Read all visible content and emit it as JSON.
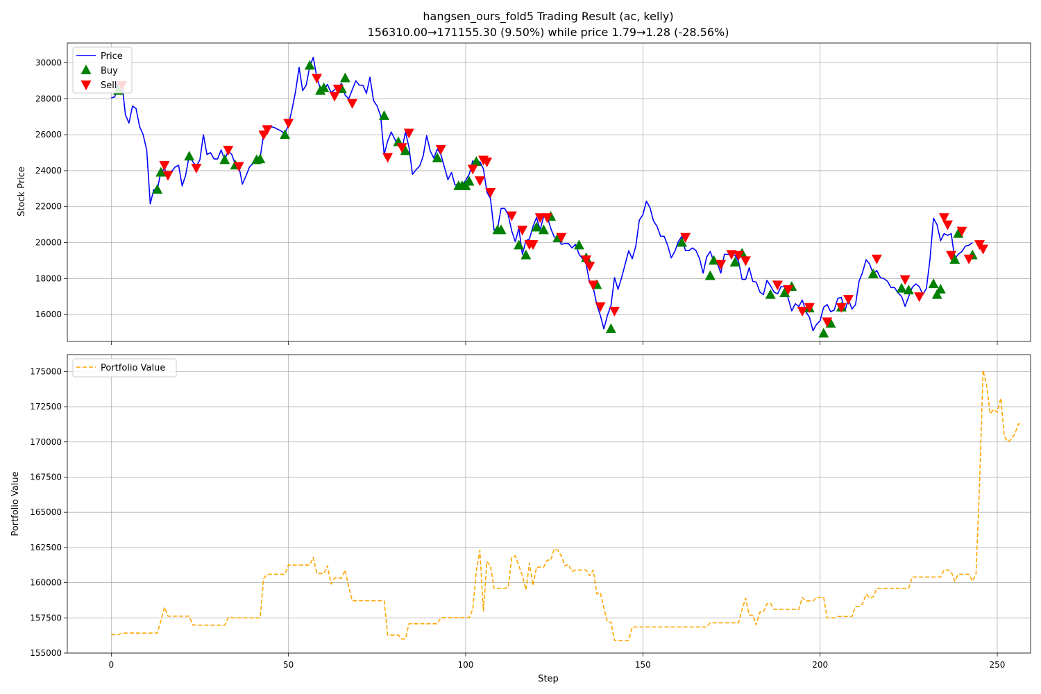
{
  "chart_data": [
    {
      "type": "line",
      "title": "hangsen_ours_fold5 Trading Result (ac, kelly)",
      "subtitle": "156310.00→171155.30 (9.50%) while price 1.79→1.28 (-28.56%)",
      "xlabel": "",
      "ylabel": "Stock Price",
      "xlim": [
        -12.4,
        259.4
      ],
      "ylim": [
        14500,
        31100
      ],
      "xticks": [
        0,
        50,
        100,
        150,
        200,
        250
      ],
      "yticks": [
        16000,
        18000,
        20000,
        22000,
        24000,
        26000,
        28000,
        30000
      ],
      "grid": true,
      "legend_position": "top-left",
      "legend": [
        "Price",
        "Buy",
        "Sell"
      ],
      "colors": {
        "price": "#0000ff",
        "buy": "#008000",
        "sell": "#ff0000"
      },
      "series": [
        {
          "name": "Price",
          "style": "solid",
          "x_start": 0,
          "values": [
            28050,
            28100,
            28900,
            28900,
            27100,
            26650,
            27600,
            27450,
            26450,
            26000,
            25150,
            22150,
            22950,
            22950,
            23950,
            24100,
            23750,
            23950,
            24200,
            24300,
            23150,
            23750,
            24850,
            24500,
            24250,
            24600,
            26000,
            24900,
            25000,
            24650,
            24650,
            25150,
            24600,
            25100,
            24900,
            24350,
            24250,
            23250,
            23700,
            24200,
            24400,
            24650,
            24700,
            26050,
            26350,
            26450,
            26400,
            26300,
            26200,
            26050,
            26550,
            27400,
            28400,
            29750,
            28450,
            28750,
            29800,
            30300,
            29200,
            28550,
            28500,
            28800,
            28350,
            28500,
            28650,
            28850,
            28200,
            28000,
            28500,
            29000,
            28750,
            28750,
            28300,
            29200,
            27900,
            27600,
            27050,
            24900,
            25650,
            26150,
            25750,
            25400,
            25150,
            26150,
            25300,
            23800,
            24050,
            24250,
            24800,
            25950,
            25100,
            24700,
            25200,
            24900,
            24200,
            23500,
            23900,
            23200,
            23250,
            23200,
            23450,
            23800,
            24550,
            24250,
            24500,
            24100,
            22800,
            22450,
            20700,
            20800,
            21900,
            21900,
            21550,
            20650,
            20050,
            20800,
            19350,
            20100,
            20200,
            20900,
            21400,
            20700,
            21450,
            21450,
            20800,
            20300,
            20300,
            19900,
            19950,
            19950,
            19700,
            19900,
            19350,
            19100,
            18800,
            17750,
            17500,
            16550,
            15950,
            15200,
            15950,
            16500,
            18050,
            17400,
            18050,
            18800,
            19550,
            19100,
            19800,
            21250,
            21550,
            22300,
            21950,
            21200,
            20900,
            20350,
            20350,
            19850,
            19150,
            19500,
            20050,
            20350,
            19550,
            19550,
            19700,
            19550,
            19100,
            18300,
            19200,
            19500,
            18950,
            18850,
            18300,
            19350,
            19350,
            19300,
            19300,
            18950,
            17950,
            17950,
            18600,
            17850,
            17800,
            17250,
            17100,
            17900,
            17600,
            17250,
            17150,
            17550,
            17550,
            16900,
            16200,
            16600,
            16450,
            16800,
            16150,
            15850,
            15100,
            15450,
            15650,
            16400,
            16550,
            16150,
            16250,
            16900,
            16950,
            16200,
            16850,
            16300,
            16550,
            17850,
            18350,
            19050,
            18800,
            18250,
            18450,
            18050,
            18000,
            17850,
            17500,
            17500,
            17200,
            17000,
            16450,
            17000,
            17500,
            17700,
            17550,
            17100,
            17450,
            19050,
            21350,
            21000,
            20100,
            20500,
            20400,
            20500,
            19100,
            19350,
            19500,
            19800,
            19850,
            20000
          ]
        },
        {
          "name": "Buy",
          "x": [
            2,
            13,
            14,
            22,
            32,
            35,
            41,
            42,
            49,
            56,
            59,
            60,
            65,
            66,
            77,
            81,
            83,
            92,
            98,
            99,
            100,
            101,
            103,
            109,
            110,
            115,
            117,
            120,
            122,
            124,
            126,
            132,
            134,
            137,
            141,
            161,
            169,
            170,
            176,
            178,
            186,
            190,
            192,
            197,
            201,
            203,
            206,
            215,
            223,
            225,
            232,
            233,
            234,
            238,
            239,
            243
          ],
          "values": [
            28450,
            22950,
            23900,
            24800,
            24600,
            24300,
            24600,
            24650,
            26000,
            29850,
            28450,
            28600,
            28550,
            29150,
            27050,
            25600,
            25100,
            24700,
            23150,
            23150,
            23150,
            23400,
            24500,
            20700,
            20700,
            19850,
            19300,
            20850,
            20700,
            21450,
            20250,
            19850,
            19150,
            17650,
            15200,
            20000,
            18150,
            19000,
            18900,
            19400,
            17100,
            17200,
            17550,
            16350,
            14950,
            15500,
            16400,
            18250,
            17450,
            17350,
            17700,
            17100,
            17400,
            19050,
            20500,
            19300
          ]
        },
        {
          "name": "Sell",
          "x": [
            3,
            15,
            16,
            24,
            33,
            36,
            43,
            44,
            50,
            58,
            63,
            64,
            68,
            78,
            82,
            84,
            93,
            102,
            104,
            105,
            106,
            107,
            113,
            116,
            118,
            119,
            121,
            123,
            127,
            134,
            135,
            136,
            138,
            142,
            162,
            172,
            175,
            177,
            179,
            188,
            191,
            195,
            197,
            202,
            206,
            208,
            216,
            224,
            228,
            235,
            236,
            237,
            240,
            242,
            245,
            246
          ],
          "values": [
            28750,
            24300,
            23750,
            24150,
            25150,
            24250,
            26000,
            26300,
            26650,
            29150,
            28150,
            28550,
            27750,
            24750,
            25300,
            26100,
            25200,
            24100,
            23450,
            24600,
            24500,
            22800,
            21500,
            20700,
            19900,
            19900,
            21400,
            21400,
            20300,
            19050,
            18700,
            17650,
            16450,
            16200,
            20300,
            18800,
            19350,
            19300,
            19000,
            17650,
            17400,
            16200,
            16400,
            15600,
            16400,
            16850,
            19100,
            17950,
            17000,
            21400,
            21000,
            19300,
            20650,
            19100,
            19900,
            19650
          ]
        }
      ]
    },
    {
      "type": "line",
      "title": "",
      "xlabel": "Step",
      "ylabel": "Portfolio Value",
      "xlim": [
        -12.4,
        259.4
      ],
      "ylim": [
        155000,
        176200
      ],
      "xticks": [
        0,
        50,
        100,
        150,
        200,
        250
      ],
      "yticks": [
        155000,
        157500,
        160000,
        162500,
        165000,
        167500,
        170000,
        172500,
        175000
      ],
      "grid": true,
      "legend_position": "top-left",
      "legend": [
        "Portfolio Value"
      ],
      "colors": {
        "portfolio": "#ffa500"
      },
      "series": [
        {
          "name": "Portfolio Value",
          "style": "dashed",
          "x_start": 0,
          "values": [
            156310,
            156310,
            156310,
            156420,
            156420,
            156420,
            156420,
            156420,
            156420,
            156420,
            156420,
            156420,
            156420,
            156420,
            157300,
            158250,
            157620,
            157620,
            157620,
            157620,
            157620,
            157620,
            157620,
            157000,
            156980,
            156980,
            156980,
            156980,
            156980,
            156980,
            156980,
            156980,
            156980,
            157520,
            157520,
            157500,
            157500,
            157500,
            157500,
            157500,
            157500,
            157500,
            157500,
            160300,
            160600,
            160600,
            160600,
            160600,
            160600,
            160600,
            161250,
            161250,
            161250,
            161250,
            161250,
            161250,
            161250,
            161800,
            160650,
            160650,
            160650,
            161200,
            159900,
            160330,
            160330,
            160330,
            160900,
            159700,
            158720,
            158720,
            158720,
            158720,
            158720,
            158720,
            158720,
            158720,
            158720,
            158720,
            156280,
            156280,
            156280,
            156280,
            156000,
            156000,
            157080,
            157080,
            157080,
            157080,
            157080,
            157080,
            157080,
            157080,
            157080,
            157520,
            157520,
            157520,
            157520,
            157520,
            157520,
            157520,
            157520,
            157520,
            158100,
            160800,
            162300,
            158000,
            161500,
            161200,
            159600,
            159600,
            159600,
            159600,
            159650,
            161800,
            161900,
            161200,
            160500,
            159500,
            161400,
            159800,
            161100,
            161100,
            161100,
            161600,
            161600,
            162400,
            162300,
            161900,
            161200,
            161300,
            160800,
            160900,
            160900,
            160900,
            160900,
            160500,
            160900,
            159200,
            159300,
            158200,
            157200,
            157200,
            155900,
            155900,
            155900,
            155900,
            155900,
            156850,
            156850,
            156850,
            156850,
            156850,
            156850,
            156850,
            156850,
            156850,
            156850,
            156850,
            156850,
            156850,
            156850,
            156850,
            156850,
            156850,
            156850,
            156850,
            156850,
            156850,
            156850,
            157150,
            157150,
            157150,
            157150,
            157150,
            157150,
            157150,
            157150,
            157150,
            158100,
            158900,
            157700,
            157700,
            157000,
            157900,
            157900,
            158500,
            158550,
            158100,
            158100,
            158100,
            158100,
            158100,
            158100,
            158100,
            158100,
            158950,
            158700,
            158700,
            158700,
            158950,
            158950,
            158950,
            157500,
            157500,
            157500,
            157600,
            157600,
            157600,
            157600,
            157600,
            158300,
            158300,
            158500,
            159200,
            158900,
            159000,
            159600,
            159600,
            159600,
            159600,
            159600,
            159600,
            159600,
            159600,
            159600,
            159600,
            160400,
            160400,
            160400,
            160400,
            160400,
            160400,
            160400,
            160400,
            160400,
            160900,
            160900,
            160800,
            160100,
            160600,
            160600,
            160600,
            160600,
            160100,
            160600,
            167000,
            175100,
            174000,
            172000,
            172300,
            172100,
            173100,
            170400,
            170000,
            170200,
            170600,
            171300,
            171155
          ]
        }
      ]
    }
  ]
}
